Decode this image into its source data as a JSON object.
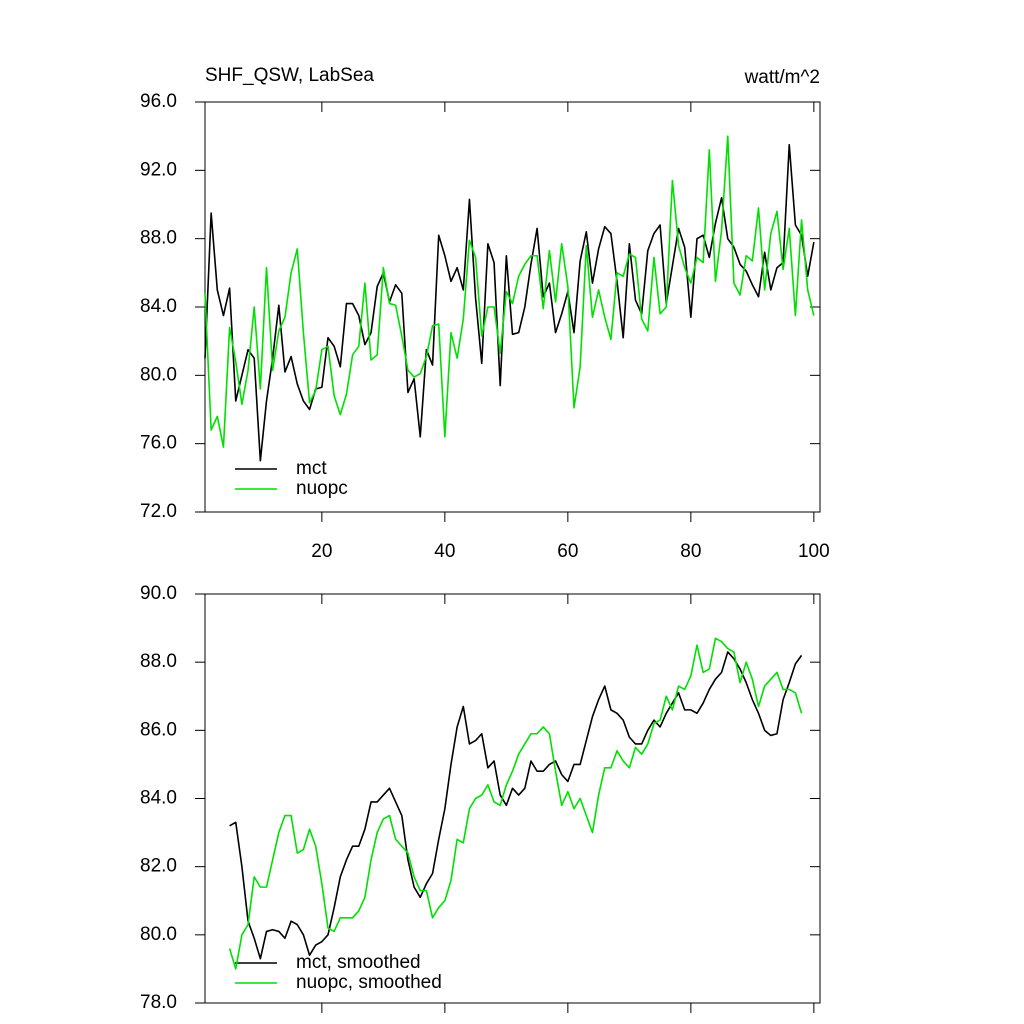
{
  "chart_data": [
    {
      "type": "line",
      "title": "SHF_QSW, LabSea",
      "subtitle": "watt/m^2",
      "x": [
        1,
        2,
        3,
        4,
        5,
        6,
        7,
        8,
        9,
        10,
        11,
        12,
        13,
        14,
        15,
        16,
        17,
        18,
        19,
        20,
        21,
        22,
        23,
        24,
        25,
        26,
        27,
        28,
        29,
        30,
        31,
        32,
        33,
        34,
        35,
        36,
        37,
        38,
        39,
        40,
        41,
        42,
        43,
        44,
        45,
        46,
        47,
        48,
        49,
        50,
        51,
        52,
        53,
        54,
        55,
        56,
        57,
        58,
        59,
        60,
        61,
        62,
        63,
        64,
        65,
        66,
        67,
        68,
        69,
        70,
        71,
        72,
        73,
        74,
        75,
        76,
        77,
        78,
        79,
        80,
        81,
        82,
        83,
        84,
        85,
        86,
        87,
        88,
        89,
        90,
        91,
        92,
        93,
        94,
        95,
        96,
        97,
        98,
        99,
        100
      ],
      "xlim": [
        1,
        101
      ],
      "xticks": [
        20,
        40,
        60,
        80,
        100
      ],
      "ylim": [
        72,
        96
      ],
      "yticks": [
        {
          "value": 72,
          "label": "72.0"
        },
        {
          "value": 76,
          "label": "76.0"
        },
        {
          "value": 80,
          "label": "80.0"
        },
        {
          "value": 84,
          "label": "84.0"
        },
        {
          "value": 88,
          "label": "88.0"
        },
        {
          "value": 92,
          "label": "92.0"
        },
        {
          "value": 96,
          "label": "96.0"
        }
      ],
      "series": [
        {
          "name": "mct",
          "color": "#000000",
          "values": [
            81,
            89.5,
            85,
            83.5,
            85.1,
            78.5,
            80,
            81.5,
            81,
            75,
            78.5,
            81,
            84.1,
            80.2,
            81.1,
            79.5,
            78.5,
            78,
            79.2,
            79.3,
            82.2,
            81.7,
            80.5,
            84.2,
            84.2,
            83.5,
            81.8,
            82.5,
            85.2,
            86,
            84.3,
            85.3,
            84.8,
            79,
            79.8,
            76.4,
            81.5,
            80.6,
            88.2,
            87,
            85.5,
            86.3,
            85,
            90.3,
            84.5,
            80.7,
            87.7,
            86.6,
            79.4,
            87,
            82.4,
            82.5,
            84,
            86.5,
            88.6,
            84.6,
            85.4,
            82.5,
            83.6,
            84.9,
            82.5,
            86.7,
            88.4,
            85.4,
            87.4,
            88.7,
            88.3,
            85.5,
            82.2,
            87.7,
            84.4,
            83.6,
            87.3,
            88.3,
            88.8,
            84.2,
            86.4,
            88.6,
            87.5,
            83.4,
            88,
            88.2,
            86.9,
            88.9,
            90.4,
            88,
            87.5,
            86.5,
            86.1,
            85.3,
            84.6,
            87.2,
            85,
            86.3,
            86.6,
            93.5,
            88.8,
            88.2,
            85.8,
            87.8
          ]
        },
        {
          "name": "nuopc",
          "color": "#00e000",
          "values": [
            84.8,
            76.8,
            77.6,
            75.8,
            82.8,
            80.8,
            78.3,
            80.3,
            84,
            79.2,
            86.3,
            80.3,
            82.6,
            83.4,
            86,
            87.4,
            82.5,
            78.4,
            79.1,
            81.5,
            81.7,
            78.8,
            77.7,
            78.9,
            81.2,
            81.7,
            85.4,
            80.9,
            81.2,
            86.3,
            84.2,
            84.1,
            82.3,
            80.3,
            79.9,
            80.1,
            81.1,
            82.9,
            83,
            76.4,
            82.5,
            81,
            83.3,
            87.9,
            86.9,
            82.3,
            84,
            84,
            81.3,
            84.9,
            84.2,
            85.8,
            86.5,
            87,
            87,
            83.9,
            87.3,
            84.3,
            87.7,
            85.2,
            78.1,
            80.5,
            87.6,
            83.4,
            85,
            83.4,
            82.1,
            86,
            85.8,
            87.1,
            86.9,
            83.3,
            82.6,
            86.9,
            83.6,
            84,
            91.4,
            87.6,
            86.3,
            85.4,
            86.9,
            86.6,
            93.2,
            85.5,
            88.5,
            94,
            85.4,
            84.7,
            87,
            86.7,
            89.8,
            85,
            88.3,
            89.6,
            86.2,
            88.6,
            83.5,
            89.1,
            85,
            83.5
          ]
        }
      ]
    },
    {
      "type": "line",
      "x": [
        5,
        6,
        7,
        8,
        9,
        10,
        11,
        12,
        13,
        14,
        15,
        16,
        17,
        18,
        19,
        20,
        21,
        22,
        23,
        24,
        25,
        26,
        27,
        28,
        29,
        30,
        31,
        32,
        33,
        34,
        35,
        36,
        37,
        38,
        39,
        40,
        41,
        42,
        43,
        44,
        45,
        46,
        47,
        48,
        49,
        50,
        51,
        52,
        53,
        54,
        55,
        56,
        57,
        58,
        59,
        60,
        61,
        62,
        63,
        64,
        65,
        66,
        67,
        68,
        69,
        70,
        71,
        72,
        73,
        74,
        75,
        76,
        77,
        78,
        79,
        80,
        81,
        82,
        83,
        84,
        85,
        86,
        87,
        88,
        89,
        90,
        91,
        92,
        93,
        94,
        95,
        96,
        97,
        98
      ],
      "xlim": [
        1,
        101
      ],
      "xticks": [
        20,
        40,
        60,
        80,
        100
      ],
      "ylim": [
        78,
        90
      ],
      "yticks": [
        {
          "value": 78,
          "label": "78.0"
        },
        {
          "value": 80,
          "label": "80.0"
        },
        {
          "value": 82,
          "label": "82.0"
        },
        {
          "value": 84,
          "label": "84.0"
        },
        {
          "value": 86,
          "label": "86.0"
        },
        {
          "value": 88,
          "label": "88.0"
        },
        {
          "value": 90,
          "label": "90.0"
        }
      ],
      "series": [
        {
          "name": "mct, smoothed",
          "color": "#000000",
          "values": [
            83.2,
            83.3,
            82,
            80.4,
            79.9,
            79.3,
            80.1,
            80.15,
            80.1,
            79.9,
            80.4,
            80.3,
            80,
            79.4,
            79.7,
            79.8,
            80,
            80.8,
            81.7,
            82.2,
            82.6,
            82.6,
            83.1,
            83.9,
            83.9,
            84.1,
            84.3,
            83.9,
            83.5,
            82.2,
            81.4,
            81.1,
            81.5,
            81.8,
            82.8,
            83.7,
            85,
            86.1,
            86.7,
            85.6,
            85.7,
            85.9,
            84.9,
            85.1,
            84.1,
            83.8,
            84.3,
            84.1,
            84.3,
            85.1,
            84.8,
            84.8,
            85,
            85.1,
            84.7,
            84.5,
            85,
            85,
            85.7,
            86.4,
            86.9,
            87.3,
            86.6,
            86.5,
            86.3,
            85.8,
            85.6,
            85.6,
            86,
            86.3,
            86.1,
            86.5,
            86.8,
            87.1,
            86.6,
            86.6,
            86.5,
            86.8,
            87.2,
            87.5,
            87.7,
            88.3,
            88.1,
            87.8,
            87.4,
            86.9,
            86.5,
            86,
            85.85,
            85.9,
            86.9,
            87.4,
            87.95,
            88.2
          ]
        },
        {
          "name": "nuopc, smoothed",
          "color": "#00e000",
          "values": [
            79.6,
            79,
            80,
            80.3,
            81.7,
            81.4,
            81.4,
            82.2,
            83,
            83.5,
            83.5,
            82.4,
            82.5,
            83.1,
            82.6,
            81.5,
            80.2,
            80.1,
            80.5,
            80.5,
            80.5,
            80.7,
            81.1,
            82.2,
            83,
            83.4,
            83.5,
            82.8,
            82.6,
            82.4,
            81.7,
            81.3,
            81.3,
            80.5,
            80.8,
            81,
            81.6,
            82.8,
            82.7,
            83.7,
            84,
            84.1,
            84.4,
            83.9,
            83.8,
            84.4,
            84.8,
            85.3,
            85.6,
            85.9,
            85.9,
            86.1,
            85.9,
            84.8,
            83.8,
            84.2,
            83.7,
            84,
            83.5,
            83,
            84.1,
            84.9,
            84.9,
            85.4,
            85.1,
            84.9,
            85.5,
            85.3,
            85.6,
            86.2,
            86.3,
            87,
            86.6,
            87.3,
            87.2,
            87.6,
            88.5,
            87.7,
            87.8,
            88.7,
            88.6,
            88.4,
            88.3,
            87.4,
            88,
            87.5,
            86.7,
            87.3,
            87.5,
            87.7,
            87.2,
            87.2,
            87.1,
            86.5
          ]
        }
      ]
    }
  ]
}
